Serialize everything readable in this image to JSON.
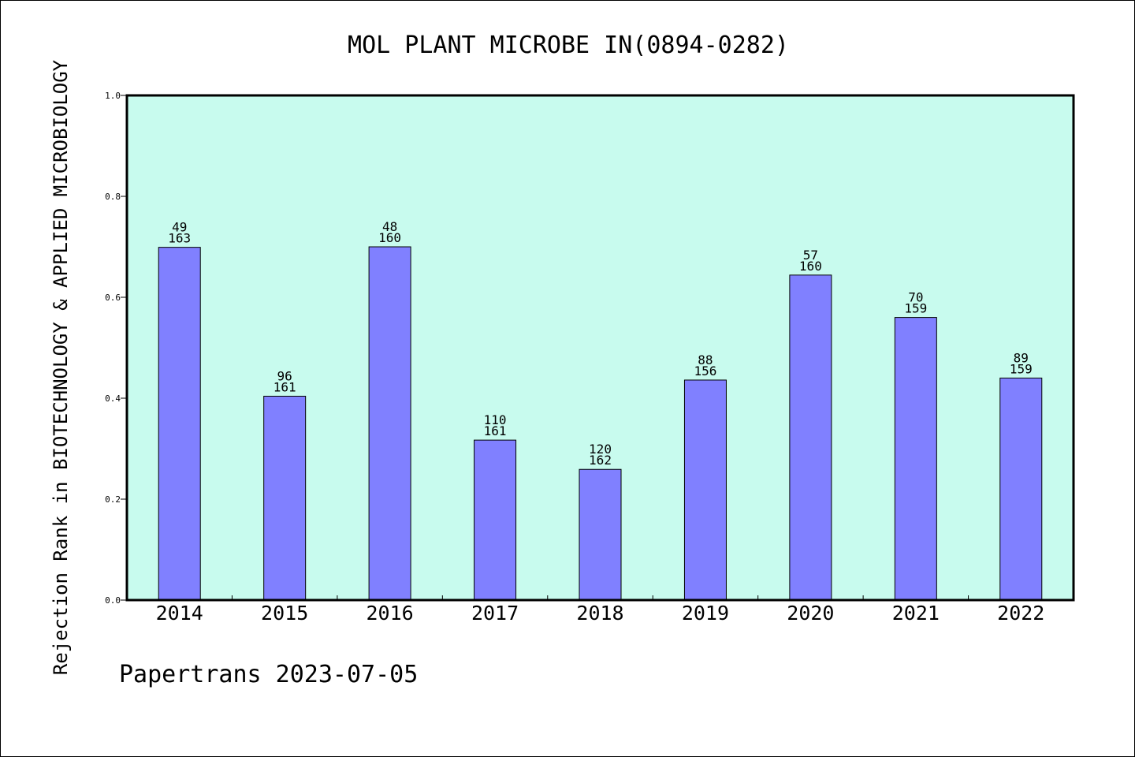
{
  "chart_data": {
    "type": "bar",
    "title": "MOL PLANT MICROBE IN(0894-0282)",
    "ylabel": "Rejection Rank in BIOTECHNOLOGY & APPLIED MICROBIOLOGY",
    "xlabel": "",
    "ylim": [
      0.0,
      1.0
    ],
    "yticks": [
      "0.0",
      "0.2",
      "0.4",
      "0.6",
      "0.8",
      "1.0"
    ],
    "categories": [
      "2014",
      "2015",
      "2016",
      "2017",
      "2018",
      "2019",
      "2020",
      "2021",
      "2022"
    ],
    "values": [
      0.699,
      0.404,
      0.7,
      0.317,
      0.259,
      0.436,
      0.644,
      0.56,
      0.44
    ],
    "label_top": [
      "49",
      "96",
      "48",
      "110",
      "120",
      "88",
      "57",
      "70",
      "89"
    ],
    "label_bottom": [
      "163",
      "161",
      "160",
      "161",
      "162",
      "156",
      "160",
      "159",
      "159"
    ],
    "colors": {
      "plot_background": "#c8fbee",
      "bar": "#8080ff",
      "bar_edge": "#000000"
    },
    "grid": false,
    "legend": "none"
  },
  "footer": {
    "text": "Papertrans 2023-07-05"
  }
}
